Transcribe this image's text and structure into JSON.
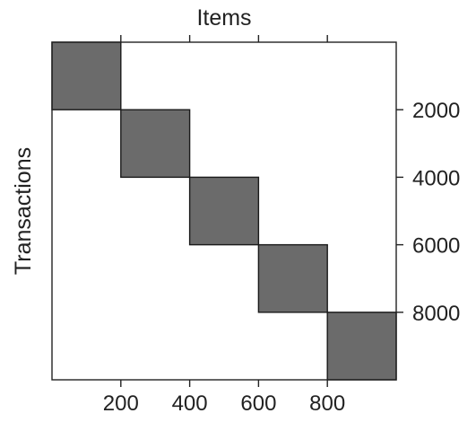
{
  "chart_data": {
    "type": "heatmap",
    "title": "",
    "xlabel": "Items",
    "ylabel": "Transactions",
    "xlim": [
      0,
      1000
    ],
    "ylim": [
      0,
      10000
    ],
    "y_direction": "down",
    "grid": false,
    "x_ticks": [
      200,
      400,
      600,
      800
    ],
    "x_tick_labels": [
      "200",
      "400",
      "600",
      "800"
    ],
    "y_ticks": [
      2000,
      4000,
      6000,
      8000
    ],
    "y_tick_labels": [
      "2000",
      "4000",
      "6000",
      "8000"
    ],
    "blocks": [
      {
        "x": [
          0,
          200
        ],
        "y": [
          0,
          2000
        ]
      },
      {
        "x": [
          200,
          400
        ],
        "y": [
          2000,
          4000
        ]
      },
      {
        "x": [
          400,
          600
        ],
        "y": [
          4000,
          6000
        ]
      },
      {
        "x": [
          600,
          800
        ],
        "y": [
          6000,
          8000
        ]
      },
      {
        "x": [
          800,
          1000
        ],
        "y": [
          8000,
          10000
        ]
      }
    ],
    "block_color": "#6b6b6b",
    "block_stroke": "#1a1a1a"
  }
}
